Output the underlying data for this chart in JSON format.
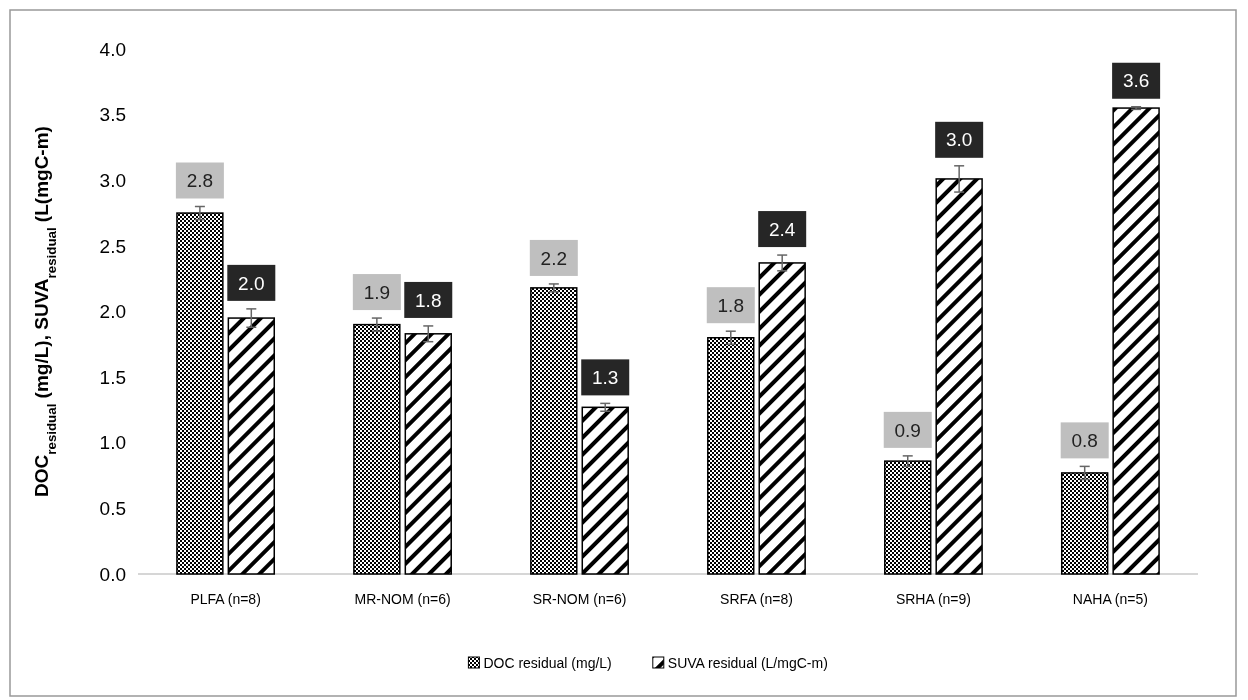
{
  "chart_data": {
    "type": "bar",
    "ylabel": "DOC$_{residual}$  (mg/L),  SUVA$_{residual}$ (L(mgC-m)",
    "categories": [
      "PLFA (n=8)",
      "MR-NOM (n=6)",
      "SR-NOM (n=6)",
      "SRFA (n=8)",
      "SRHA (n=9)",
      "NAHA (n=5)"
    ],
    "series": [
      {
        "name": "DOC residual (mg/L)",
        "color": "#000000",
        "values": [
          2.75,
          1.9,
          2.18,
          1.8,
          0.86,
          0.77
        ],
        "errors": [
          0.05,
          0.05,
          0.03,
          0.05,
          0.04,
          0.05
        ],
        "value_labels": [
          "2.8",
          "1.9",
          "2.2",
          "1.8",
          "0.9",
          "0.8"
        ]
      },
      {
        "name": "SUVA residual (L/mgC-m)",
        "color": "#000000",
        "values": [
          1.95,
          1.83,
          1.27,
          2.37,
          3.01,
          3.55
        ],
        "errors": [
          0.07,
          0.06,
          0.03,
          0.06,
          0.1,
          0.01
        ],
        "value_labels": [
          "2.0",
          "1.8",
          "1.3",
          "2.4",
          "3.0",
          "3.6"
        ]
      }
    ],
    "ylim": [
      0,
      4
    ],
    "yticks": [
      {
        "value": 0,
        "label": "0.0"
      },
      0.5,
      {
        "value": 1,
        "label": "1.0"
      },
      1.5,
      {
        "value": 2,
        "label": "2.0"
      },
      2.5,
      {
        "value": 3,
        "label": "3.0"
      },
      3.5,
      {
        "value": 4,
        "label": "4.0"
      }
    ],
    "legend": "bottom",
    "grid": false
  }
}
